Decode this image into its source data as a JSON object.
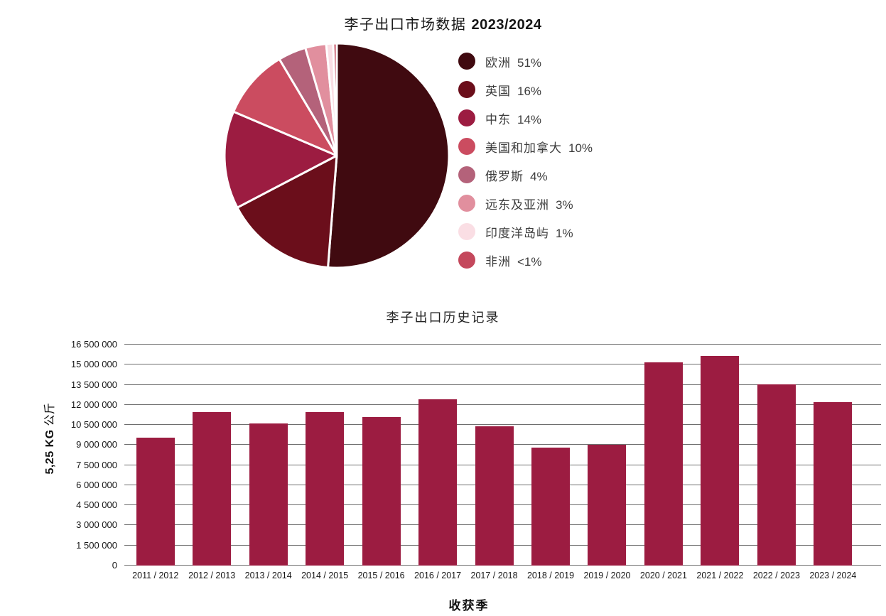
{
  "page": {
    "background": "#ffffff"
  },
  "chart_data": [
    {
      "type": "pie",
      "title": "李子出口市场数据 2023/2024",
      "title_main": "李子出口市场数据",
      "title_year": "2023/2024",
      "legend_position": "right",
      "slice_border_color": "#ffffff",
      "slices": [
        {
          "label": "欧洲",
          "percent_label": "51%",
          "value": 51,
          "color": "#400a10"
        },
        {
          "label": "英国",
          "percent_label": "16%",
          "value": 16,
          "color": "#6b0e1b"
        },
        {
          "label": "中东",
          "percent_label": "14%",
          "value": 14,
          "color": "#9c1c41"
        },
        {
          "label": "美国和加拿大",
          "percent_label": "10%",
          "value": 10,
          "color": "#cb4c60"
        },
        {
          "label": "俄罗斯",
          "percent_label": "4%",
          "value": 4,
          "color": "#b4627a"
        },
        {
          "label": "远东及亚洲",
          "percent_label": "3%",
          "value": 3,
          "color": "#e18f9e"
        },
        {
          "label": "印度洋岛屿",
          "percent_label": "1%",
          "value": 1,
          "color": "#fadee4"
        },
        {
          "label": "非洲",
          "percent_label": "<1%",
          "value": 0.5,
          "color": "#c4485c"
        }
      ]
    },
    {
      "type": "bar",
      "title": "李子出口历史记录",
      "xlabel": "收获季",
      "ylabel": "5,25 KG 公斤",
      "ylabel_bold": "5,25 KG",
      "ylabel_unit": "公斤",
      "categories": [
        "2011 / 2012",
        "2012 / 2013",
        "2013 / 2014",
        "2014 / 2015",
        "2015 / 2016",
        "2016 / 2017",
        "2017 / 2018",
        "2018 / 2019",
        "2019 / 2020",
        "2020 / 2021",
        "2021 / 2022",
        "2022 / 2023",
        "2023 / 2024"
      ],
      "values": [
        9550000,
        11450000,
        10600000,
        11450000,
        11100000,
        12400000,
        10400000,
        8800000,
        9000000,
        15200000,
        15650000,
        13550000,
        12200000
      ],
      "ylim": [
        0,
        16500000
      ],
      "ytick_step": 1500000,
      "ytick_labels": [
        "0",
        "1 500 000",
        "3 000 000",
        "4 500 000",
        "6 000 000",
        "7 500 000",
        "9 000 000",
        "10 500 000",
        "12 000 000",
        "13 500 000",
        "15 000 000",
        "16 500 000"
      ],
      "bar_color": "#9c1c41",
      "grid": true,
      "grid_color": "#6e6e6e"
    }
  ]
}
